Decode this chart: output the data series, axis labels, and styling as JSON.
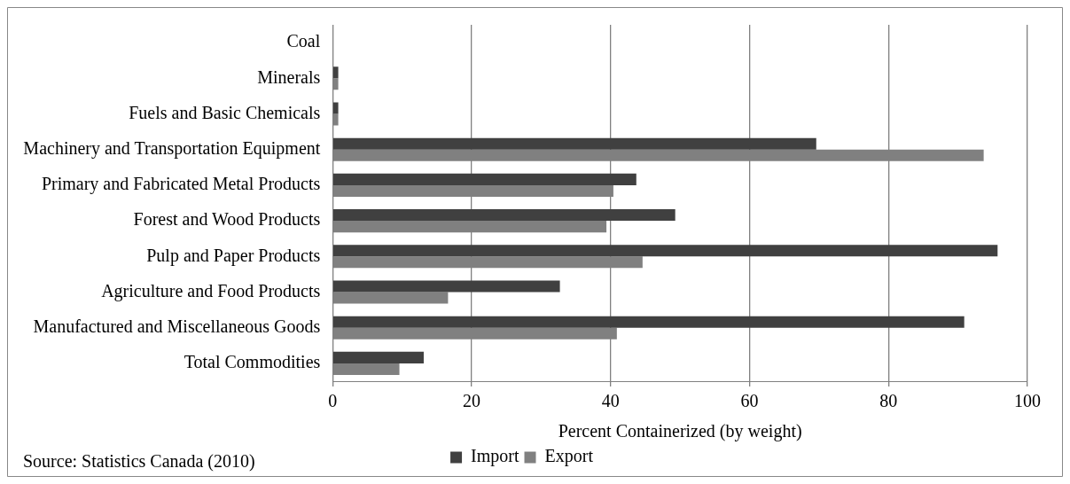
{
  "chart_data": {
    "type": "bar",
    "orientation": "horizontal",
    "categories": [
      "Coal",
      "Minerals",
      "Fuels and Basic Chemicals",
      "Machinery and Transportation Equipment",
      "Primary and Fabricated Metal Products",
      "Forest and Wood Products",
      "Pulp and Paper Products",
      "Agriculture and Food Products",
      "Manufactured and Miscellaneous Goods",
      "Total Commodities"
    ],
    "series": [
      {
        "name": "Import",
        "color": "#404040",
        "values": [
          0,
          0.8,
          0.8,
          69.6,
          43.7,
          49.3,
          95.7,
          32.7,
          90.9,
          13.1
        ]
      },
      {
        "name": "Export",
        "color": "#808080",
        "values": [
          0,
          0.8,
          0.8,
          93.7,
          40.4,
          39.4,
          44.6,
          16.6,
          40.9,
          9.6
        ]
      }
    ],
    "xlabel": "Percent Containerized (by weight)",
    "xlim": [
      0,
      100
    ],
    "xticks": [
      0,
      20,
      40,
      60,
      80,
      100
    ],
    "grid": "x",
    "legend": "bottom",
    "annotations": [
      "Source: Statistics Canada (2010)"
    ]
  }
}
